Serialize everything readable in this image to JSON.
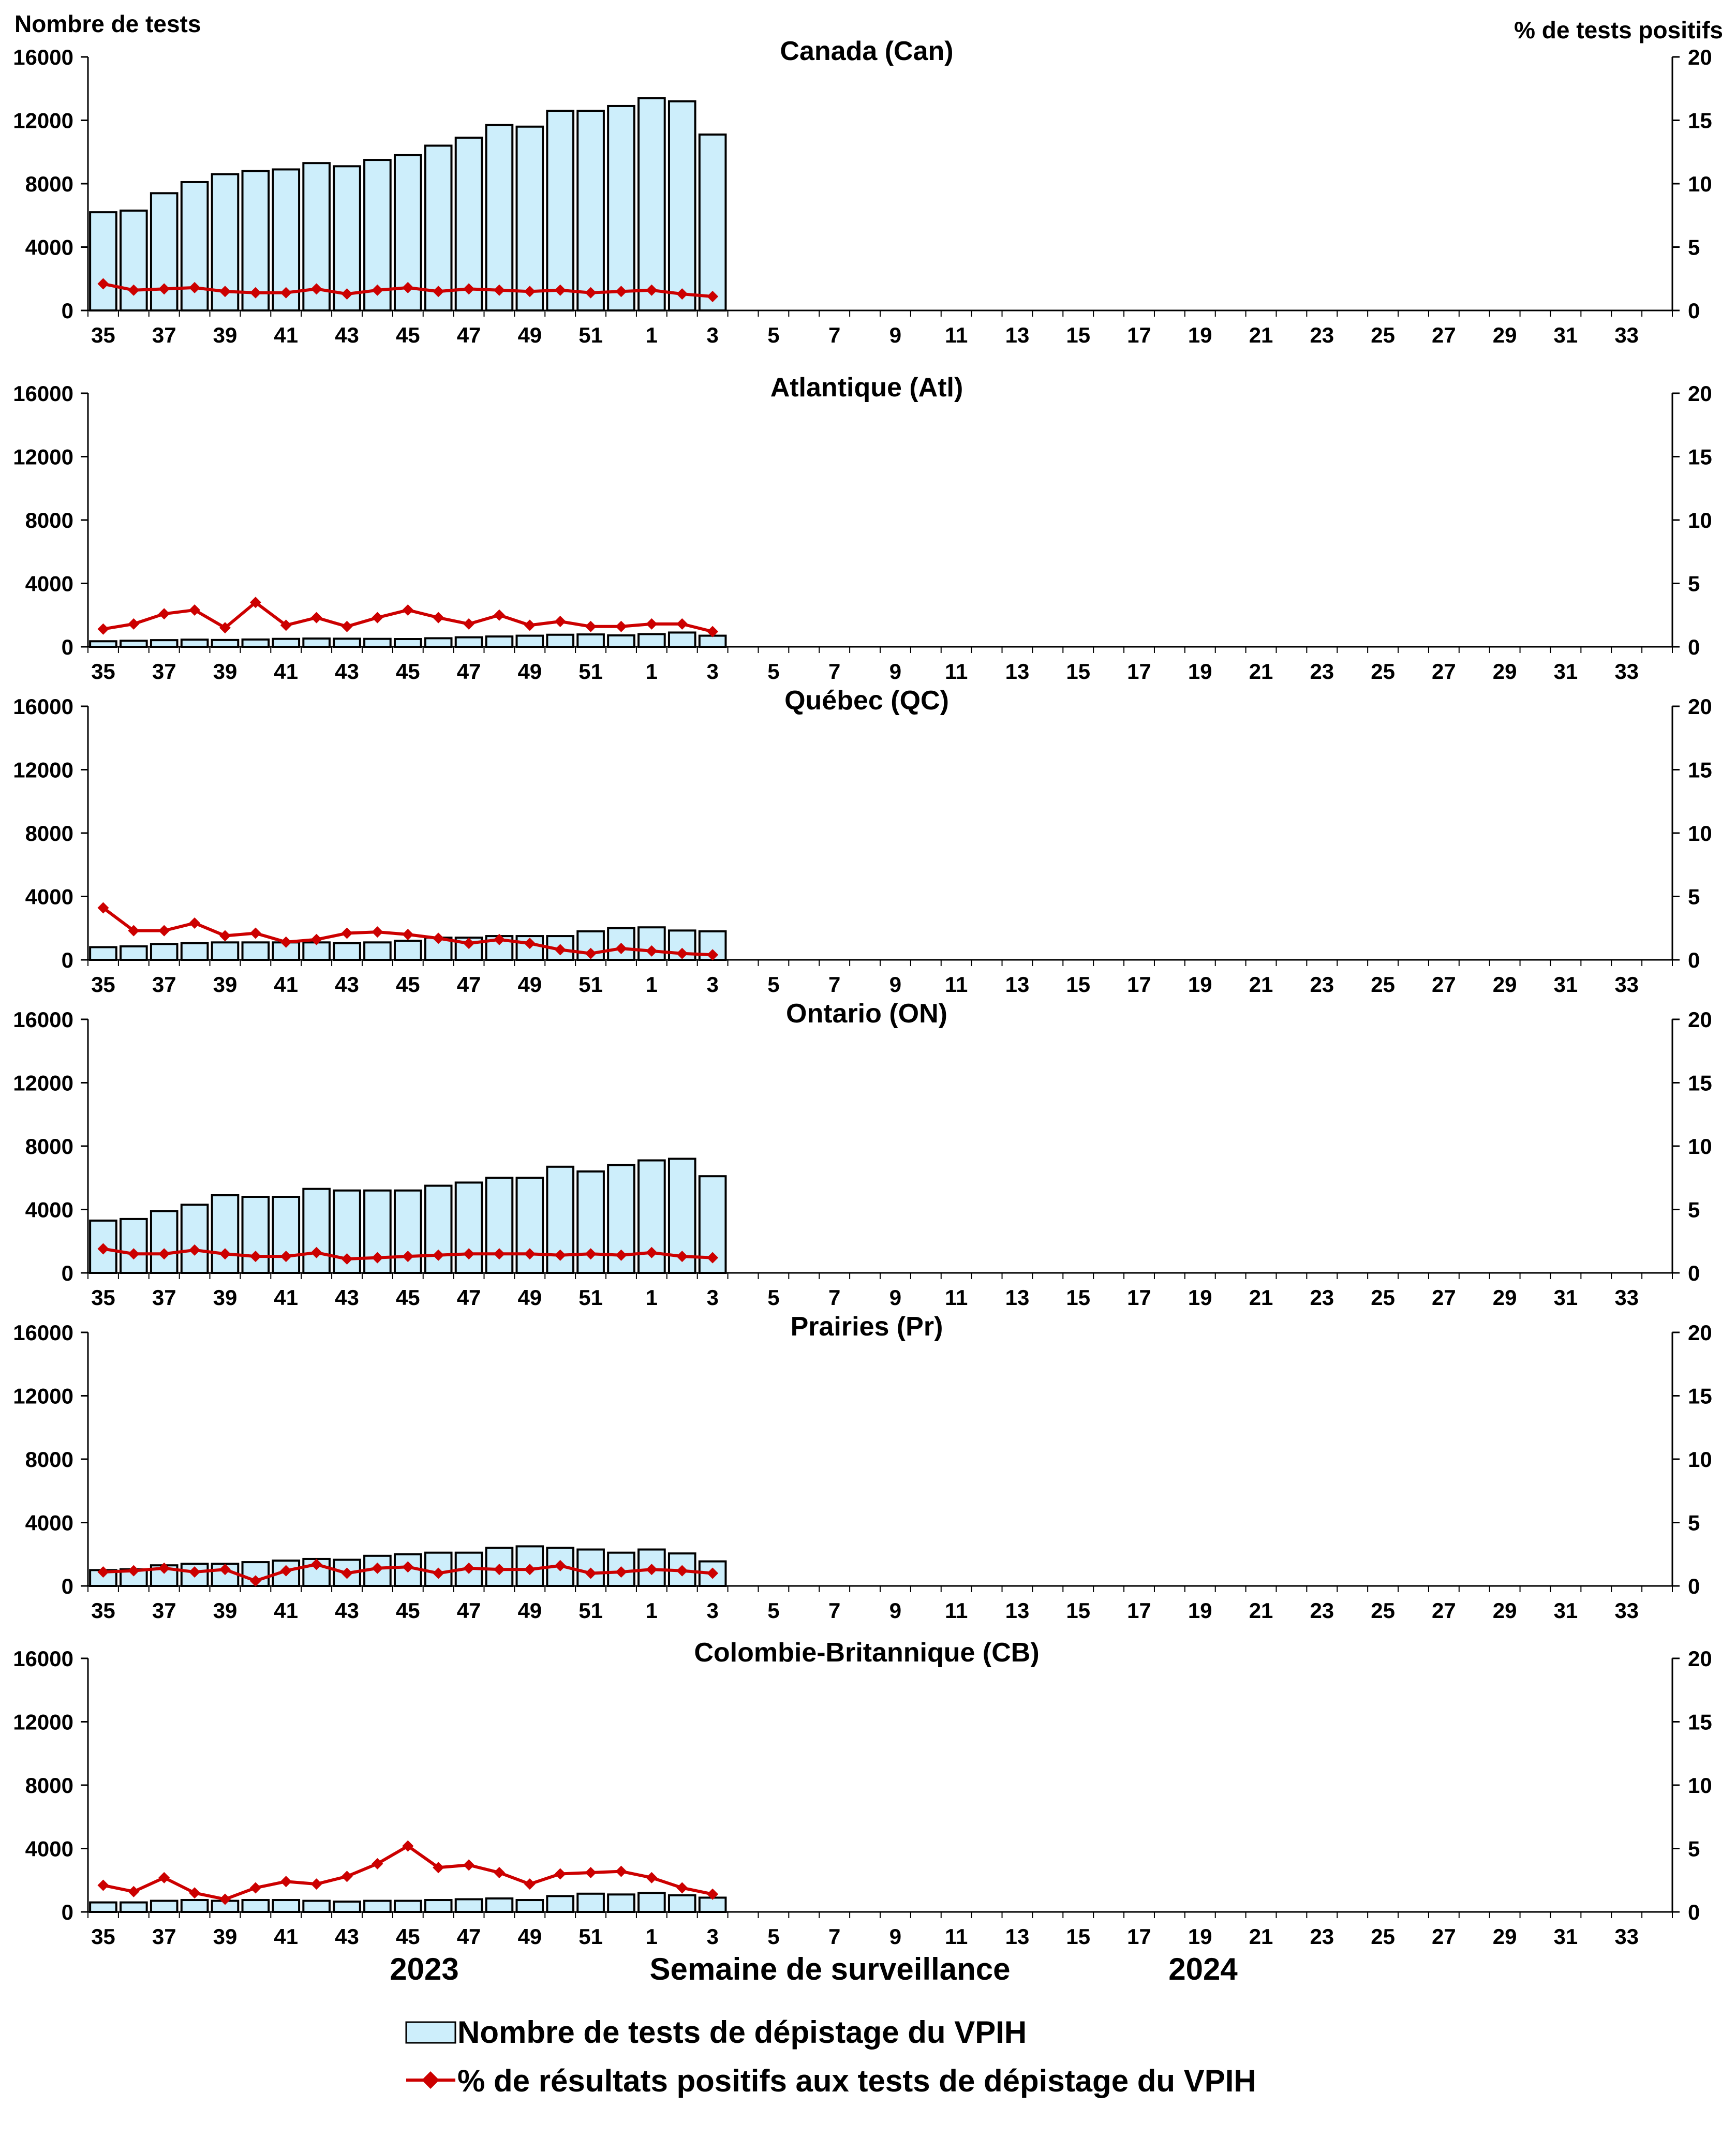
{
  "y_left_title": "Nombre de tests",
  "y_right_title": "% de tests positifs",
  "x_label": "Semaine de surveillance",
  "year_labels": [
    "2023",
    "2024"
  ],
  "legend": {
    "bars_label": "Nombre de tests de dépistage du VPIH",
    "line_label": "% de résultats positifs aux tests de dépistage du VPIH"
  },
  "colors": {
    "bar_fill": "#cdeefb",
    "bar_stroke": "#000000",
    "line": "#cc0000",
    "axis": "#000000"
  },
  "chart_data": {
    "type": "bar+line",
    "x_ticks": [
      "35",
      "37",
      "39",
      "41",
      "43",
      "45",
      "47",
      "49",
      "51",
      "1",
      "3",
      "5",
      "7",
      "9",
      "11",
      "13",
      "15",
      "17",
      "19",
      "21",
      "23",
      "25",
      "27",
      "29",
      "31",
      "33"
    ],
    "weeks": [
      "35",
      "36",
      "37",
      "38",
      "39",
      "40",
      "41",
      "42",
      "43",
      "44",
      "45",
      "46",
      "47",
      "48",
      "49",
      "50",
      "51",
      "52",
      "1",
      "2",
      "3",
      "4",
      "5",
      "6",
      "7",
      "8",
      "9",
      "10",
      "11",
      "12",
      "13",
      "14",
      "15",
      "16",
      "17",
      "18",
      "19",
      "20",
      "21",
      "22",
      "23",
      "24",
      "25",
      "26",
      "27",
      "28",
      "29",
      "30",
      "31",
      "32",
      "33",
      "34"
    ],
    "ylim_left": [
      0,
      16000
    ],
    "ylim_right": [
      0,
      20
    ],
    "yticks_left": [
      "0",
      "4000",
      "8000",
      "12000",
      "16000"
    ],
    "yticks_right": [
      "0",
      "5",
      "10",
      "15",
      "20"
    ],
    "panels": [
      {
        "title": "Canada (Can)",
        "tests": [
          6200,
          6300,
          7400,
          8100,
          8600,
          8800,
          8900,
          9300,
          9100,
          9500,
          9800,
          10400,
          10900,
          11700,
          11600,
          12600,
          12600,
          12900,
          13400,
          13200,
          11100
        ],
        "pct_positive": [
          2.1,
          1.6,
          1.7,
          1.8,
          1.5,
          1.4,
          1.4,
          1.7,
          1.3,
          1.6,
          1.8,
          1.5,
          1.7,
          1.6,
          1.5,
          1.6,
          1.4,
          1.5,
          1.6,
          1.3,
          1.1
        ]
      },
      {
        "title": "Atlantique (Atl)",
        "tests": [
          350,
          380,
          420,
          450,
          430,
          460,
          500,
          520,
          510,
          500,
          490,
          540,
          600,
          650,
          700,
          760,
          780,
          720,
          800,
          900,
          700
        ],
        "pct_positive": [
          1.4,
          1.8,
          2.6,
          2.9,
          1.5,
          3.5,
          1.7,
          2.3,
          1.6,
          2.3,
          2.9,
          2.3,
          1.8,
          2.5,
          1.7,
          2.0,
          1.6,
          1.6,
          1.8,
          1.8,
          1.2
        ]
      },
      {
        "title": "Québec (QC)",
        "tests": [
          800,
          850,
          1000,
          1050,
          1100,
          1100,
          1100,
          1100,
          1050,
          1100,
          1200,
          1400,
          1400,
          1500,
          1500,
          1500,
          1800,
          2000,
          2050,
          1850,
          1800
        ],
        "pct_positive": [
          4.1,
          2.3,
          2.3,
          2.9,
          1.9,
          2.1,
          1.4,
          1.6,
          2.1,
          2.2,
          2.0,
          1.7,
          1.3,
          1.6,
          1.3,
          0.8,
          0.5,
          0.9,
          0.7,
          0.5,
          0.4
        ]
      },
      {
        "title": "Ontario (ON)",
        "tests": [
          3300,
          3400,
          3900,
          4300,
          4900,
          4800,
          4800,
          5300,
          5200,
          5200,
          5200,
          5500,
          5700,
          6000,
          6000,
          6700,
          6400,
          6800,
          7100,
          7200,
          6100
        ],
        "pct_positive": [
          1.9,
          1.5,
          1.5,
          1.8,
          1.5,
          1.3,
          1.3,
          1.6,
          1.1,
          1.2,
          1.3,
          1.4,
          1.5,
          1.5,
          1.5,
          1.4,
          1.5,
          1.4,
          1.6,
          1.3,
          1.2
        ]
      },
      {
        "title": "Prairies (Pr)",
        "tests": [
          1000,
          1050,
          1300,
          1400,
          1400,
          1500,
          1600,
          1700,
          1650,
          1900,
          2000,
          2100,
          2100,
          2400,
          2500,
          2400,
          2300,
          2100,
          2300,
          2050,
          1550
        ],
        "pct_positive": [
          1.1,
          1.2,
          1.4,
          1.1,
          1.3,
          0.4,
          1.2,
          1.7,
          1.0,
          1.4,
          1.5,
          1.0,
          1.4,
          1.3,
          1.3,
          1.6,
          1.0,
          1.1,
          1.3,
          1.2,
          1.0
        ]
      },
      {
        "title": "Colombie-Britannique (CB)",
        "tests": [
          600,
          600,
          700,
          750,
          700,
          750,
          750,
          700,
          650,
          700,
          700,
          750,
          800,
          850,
          750,
          1000,
          1150,
          1100,
          1200,
          1050,
          900
        ],
        "pct_positive": [
          2.1,
          1.6,
          2.7,
          1.5,
          1.0,
          1.9,
          2.4,
          2.2,
          2.8,
          3.8,
          5.2,
          3.5,
          3.7,
          3.1,
          2.2,
          3.0,
          3.1,
          3.2,
          2.7,
          1.9,
          1.4
        ]
      }
    ]
  }
}
